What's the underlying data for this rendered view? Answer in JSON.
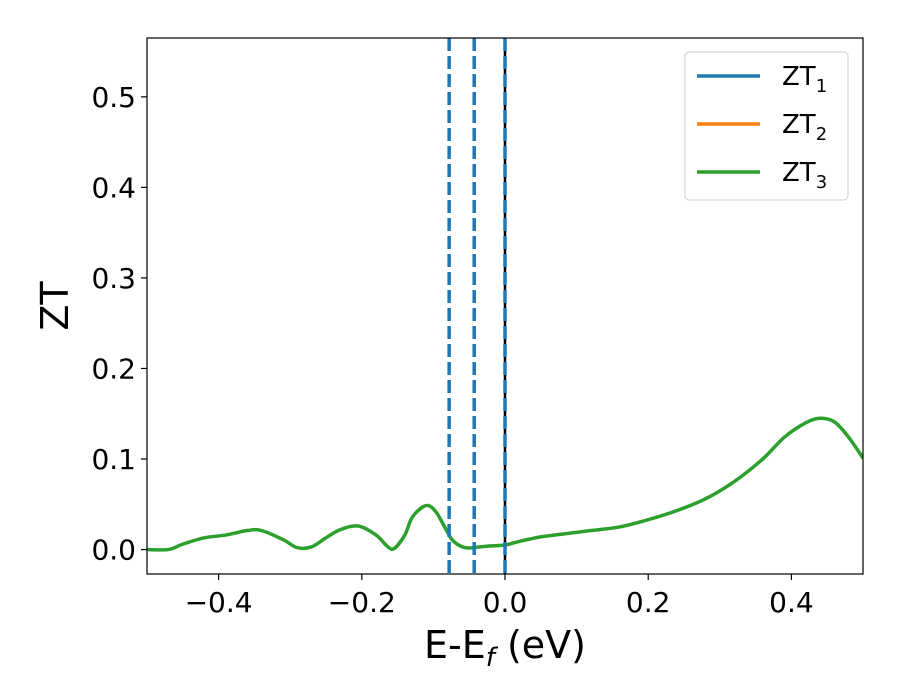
{
  "chart_data": {
    "type": "line",
    "xlabel": {
      "main": "E-E",
      "sub": "f",
      "unit": " (eV)"
    },
    "ylabel": "ZT",
    "xlim": [
      -0.5,
      0.5
    ],
    "ylim": [
      -0.027,
      0.565
    ],
    "xticks": [
      -0.4,
      -0.2,
      0.0,
      0.2,
      0.4
    ],
    "xtick_labels": [
      "−0.4",
      "−0.2",
      "0.0",
      "0.2",
      "0.4"
    ],
    "yticks": [
      0.0,
      0.1,
      0.2,
      0.3,
      0.4,
      0.5
    ],
    "ytick_labels": [
      "0.0",
      "0.1",
      "0.2",
      "0.3",
      "0.4",
      "0.5"
    ],
    "grid": false,
    "legend_position": "top-right",
    "series": [
      {
        "name": "ZT",
        "subscript": "1",
        "color": "#1f77b4",
        "x": [],
        "y": []
      },
      {
        "name": "ZT",
        "subscript": "2",
        "color": "#ff7f0e",
        "x": [],
        "y": []
      },
      {
        "name": "ZT",
        "subscript": "3",
        "color": "#2ca02c",
        "x": [
          -0.5,
          -0.47,
          -0.45,
          -0.42,
          -0.39,
          -0.36,
          -0.34,
          -0.31,
          -0.29,
          -0.27,
          -0.25,
          -0.23,
          -0.205,
          -0.18,
          -0.165,
          -0.155,
          -0.14,
          -0.13,
          -0.115,
          -0.105,
          -0.095,
          -0.085,
          -0.075,
          -0.065,
          -0.055,
          -0.045,
          -0.035,
          -0.02,
          0.0,
          0.02,
          0.05,
          0.08,
          0.12,
          0.16,
          0.2,
          0.24,
          0.28,
          0.32,
          0.36,
          0.39,
          0.42,
          0.44,
          0.46,
          0.48,
          0.5
        ],
        "y": [
          0.0,
          0.0,
          0.006,
          0.013,
          0.016,
          0.021,
          0.021,
          0.011,
          0.002,
          0.003,
          0.013,
          0.022,
          0.026,
          0.016,
          0.004,
          0.001,
          0.016,
          0.035,
          0.047,
          0.048,
          0.04,
          0.026,
          0.012,
          0.005,
          0.002,
          0.002,
          0.003,
          0.004,
          0.005,
          0.009,
          0.014,
          0.017,
          0.021,
          0.025,
          0.033,
          0.043,
          0.056,
          0.075,
          0.1,
          0.124,
          0.14,
          0.145,
          0.141,
          0.124,
          0.101
        ]
      }
    ],
    "vlines": [
      {
        "x": -0.078,
        "style": "dashed",
        "color": "#1f77b4"
      },
      {
        "x": -0.043,
        "style": "dashed",
        "color": "#1f77b4"
      },
      {
        "x": 0.0,
        "style": "solid",
        "color": "#000000"
      },
      {
        "x": 0.0,
        "style": "dashed",
        "color": "#1f77b4"
      }
    ]
  }
}
